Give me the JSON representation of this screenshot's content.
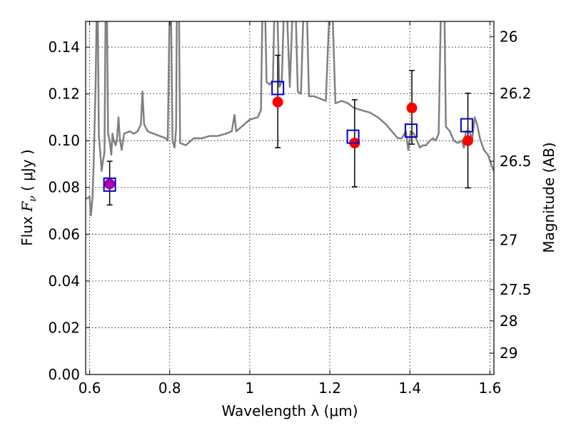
{
  "chart_data": {
    "type": "scatter",
    "xlabel": "Wavelength  λ (μm)",
    "ylabel_prefix": "Flux ",
    "ylabel_var": "F",
    "ylabel_sub": "ν",
    "ylabel_units": "  ( μJy )",
    "y2label": "Magnitude (AB)",
    "xlim": [
      0.59,
      1.61
    ],
    "ylim": [
      0.0,
      0.151
    ],
    "grid": true,
    "xticks": [
      {
        "value": 0.6,
        "label": "0.6"
      },
      {
        "value": 0.8,
        "label": "0.8"
      },
      {
        "value": 1.0,
        "label": "1"
      },
      {
        "value": 1.2,
        "label": "1.2"
      },
      {
        "value": 1.4,
        "label": "1.4"
      },
      {
        "value": 1.6,
        "label": "1.6"
      }
    ],
    "yticks": [
      {
        "value": 0.0,
        "label": "0.00"
      },
      {
        "value": 0.02,
        "label": "0.02"
      },
      {
        "value": 0.04,
        "label": "0.04"
      },
      {
        "value": 0.06,
        "label": "0.06"
      },
      {
        "value": 0.08,
        "label": "0.08"
      },
      {
        "value": 0.1,
        "label": "0.10"
      },
      {
        "value": 0.12,
        "label": "0.12"
      },
      {
        "value": 0.14,
        "label": "0.14"
      }
    ],
    "y2ticks": [
      {
        "flux": 0.1445,
        "label": "26"
      },
      {
        "flux": 0.1202,
        "label": "26.2"
      },
      {
        "flux": 0.0912,
        "label": "26.5"
      },
      {
        "flux": 0.0575,
        "label": "27"
      },
      {
        "flux": 0.0363,
        "label": "27.5"
      },
      {
        "flux": 0.0229,
        "label": "28"
      },
      {
        "flux": 0.0091,
        "label": "29"
      }
    ],
    "series": [
      {
        "kind": "line",
        "color": "#808080",
        "points": [
          [
            0.59,
            0.075
          ],
          [
            0.6,
            0.076
          ],
          [
            0.603,
            0.068
          ],
          [
            0.607,
            0.075
          ],
          [
            0.61,
            0.09
          ],
          [
            0.615,
            0.125
          ],
          [
            0.618,
            0.16
          ],
          [
            0.62,
            0.16
          ],
          [
            0.623,
            0.102
          ],
          [
            0.627,
            0.094
          ],
          [
            0.63,
            0.087
          ],
          [
            0.633,
            0.091
          ],
          [
            0.637,
            0.095
          ],
          [
            0.64,
            0.16
          ],
          [
            0.643,
            0.16
          ],
          [
            0.646,
            0.103
          ],
          [
            0.65,
            0.1
          ],
          [
            0.654,
            0.094
          ],
          [
            0.657,
            0.103
          ],
          [
            0.66,
            0.1
          ],
          [
            0.665,
            0.098
          ],
          [
            0.668,
            0.1
          ],
          [
            0.672,
            0.11
          ],
          [
            0.676,
            0.1
          ],
          [
            0.68,
            0.096
          ],
          [
            0.686,
            0.103
          ],
          [
            0.7,
            0.104
          ],
          [
            0.71,
            0.103
          ],
          [
            0.72,
            0.104
          ],
          [
            0.728,
            0.107
          ],
          [
            0.732,
            0.121
          ],
          [
            0.736,
            0.107
          ],
          [
            0.745,
            0.104
          ],
          [
            0.76,
            0.103
          ],
          [
            0.775,
            0.102
          ],
          [
            0.79,
            0.101
          ],
          [
            0.795,
            0.1
          ],
          [
            0.8,
            0.16
          ],
          [
            0.803,
            0.16
          ],
          [
            0.807,
            0.1
          ],
          [
            0.812,
            0.097
          ],
          [
            0.816,
            0.105
          ],
          [
            0.818,
            0.16
          ],
          [
            0.823,
            0.16
          ],
          [
            0.826,
            0.099
          ],
          [
            0.84,
            0.098
          ],
          [
            0.86,
            0.101
          ],
          [
            0.88,
            0.101
          ],
          [
            0.9,
            0.102
          ],
          [
            0.92,
            0.102
          ],
          [
            0.94,
            0.103
          ],
          [
            0.955,
            0.104
          ],
          [
            0.962,
            0.111
          ],
          [
            0.966,
            0.104
          ],
          [
            0.98,
            0.106
          ],
          [
            1.0,
            0.109
          ],
          [
            1.02,
            0.11
          ],
          [
            1.028,
            0.113
          ],
          [
            1.032,
            0.16
          ],
          [
            1.038,
            0.16
          ],
          [
            1.042,
            0.125
          ],
          [
            1.05,
            0.124
          ],
          [
            1.058,
            0.126
          ],
          [
            1.062,
            0.16
          ],
          [
            1.068,
            0.16
          ],
          [
            1.074,
            0.123
          ],
          [
            1.08,
            0.125
          ],
          [
            1.086,
            0.16
          ],
          [
            1.092,
            0.16
          ],
          [
            1.1,
            0.123
          ],
          [
            1.108,
            0.16
          ],
          [
            1.114,
            0.16
          ],
          [
            1.12,
            0.121
          ],
          [
            1.128,
            0.12
          ],
          [
            1.135,
            0.16
          ],
          [
            1.142,
            0.16
          ],
          [
            1.148,
            0.119
          ],
          [
            1.16,
            0.119
          ],
          [
            1.176,
            0.118
          ],
          [
            1.19,
            0.117
          ],
          [
            1.2,
            0.16
          ],
          [
            1.206,
            0.16
          ],
          [
            1.214,
            0.116
          ],
          [
            1.23,
            0.117
          ],
          [
            1.245,
            0.116
          ],
          [
            1.26,
            0.114
          ],
          [
            1.28,
            0.113
          ],
          [
            1.3,
            0.112
          ],
          [
            1.32,
            0.11
          ],
          [
            1.34,
            0.107
          ],
          [
            1.355,
            0.104
          ],
          [
            1.37,
            0.101
          ],
          [
            1.38,
            0.101
          ],
          [
            1.39,
            0.104
          ],
          [
            1.396,
            0.096
          ],
          [
            1.402,
            0.104
          ],
          [
            1.41,
            0.103
          ],
          [
            1.418,
            0.1
          ],
          [
            1.425,
            0.097
          ],
          [
            1.432,
            0.098
          ],
          [
            1.44,
            0.098
          ],
          [
            1.45,
            0.1
          ],
          [
            1.458,
            0.101
          ],
          [
            1.465,
            0.1
          ],
          [
            1.472,
            0.103
          ],
          [
            1.478,
            0.16
          ],
          [
            1.486,
            0.16
          ],
          [
            1.49,
            0.106
          ],
          [
            1.5,
            0.104
          ],
          [
            1.51,
            0.1
          ],
          [
            1.52,
            0.099
          ],
          [
            1.53,
            0.1
          ],
          [
            1.535,
            0.097
          ],
          [
            1.54,
            0.104
          ],
          [
            1.548,
            0.104
          ],
          [
            1.556,
            0.101
          ],
          [
            1.562,
            0.11
          ],
          [
            1.568,
            0.107
          ],
          [
            1.575,
            0.101
          ],
          [
            1.585,
            0.096
          ],
          [
            1.595,
            0.094
          ],
          [
            1.605,
            0.089
          ],
          [
            1.61,
            0.087
          ]
        ]
      },
      {
        "kind": "points",
        "marker": "circle",
        "color": "#ff0000",
        "points": [
          {
            "x": 0.65,
            "y": 0.0815,
            "yerr_low": 0.0725,
            "yerr_high": 0.0912
          },
          {
            "x": 1.07,
            "y": 0.1165,
            "yerr_low": 0.097,
            "yerr_high": 0.1365
          },
          {
            "x": 1.262,
            "y": 0.099,
            "yerr_low": 0.0803,
            "yerr_high": 0.1175
          },
          {
            "x": 1.405,
            "y": 0.114,
            "yerr_low": 0.0985,
            "yerr_high": 0.13
          },
          {
            "x": 1.545,
            "y": 0.1,
            "yerr_low": 0.0798,
            "yerr_high": 0.1203
          }
        ]
      },
      {
        "kind": "points",
        "marker": "open-square",
        "color": "#0000cc",
        "points": [
          {
            "x": 0.65,
            "y": 0.0812
          },
          {
            "x": 1.07,
            "y": 0.1225
          },
          {
            "x": 1.258,
            "y": 0.1017
          },
          {
            "x": 1.403,
            "y": 0.1043
          },
          {
            "x": 1.542,
            "y": 0.1066
          }
        ]
      }
    ],
    "overlap_color": "#aa00aa"
  }
}
